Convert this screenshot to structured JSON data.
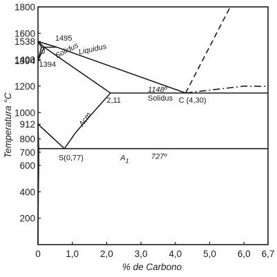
{
  "chart_data": {
    "type": "line",
    "title": "",
    "xlabel": "% de Carbono",
    "ylabel": "Temperatura °C",
    "xlim": [
      0,
      6.7
    ],
    "ylim": [
      0,
      1800
    ],
    "x_ticks": [
      {
        "v": 0,
        "label": "0"
      },
      {
        "v": 1.0,
        "label": "1,0"
      },
      {
        "v": 2.0,
        "label": "2,0"
      },
      {
        "v": 3.0,
        "label": "3,0"
      },
      {
        "v": 4.0,
        "label": "4,0"
      },
      {
        "v": 5.0,
        "label": "5,0"
      },
      {
        "v": 6.0,
        "label": "6,0"
      },
      {
        "v": 6.7,
        "label": "6,7"
      }
    ],
    "y_ticks": [
      {
        "v": 200,
        "label": "200"
      },
      {
        "v": 400,
        "label": "400"
      },
      {
        "v": 600,
        "label": "600"
      },
      {
        "v": 700,
        "label": "700"
      },
      {
        "v": 800,
        "label": "800"
      },
      {
        "v": 912,
        "label": "912"
      },
      {
        "v": 1000,
        "label": "1000"
      },
      {
        "v": 1200,
        "label": "1200"
      },
      {
        "v": 1394,
        "label": "1394"
      },
      {
        "v": 1400,
        "label": "1400"
      },
      {
        "v": 1538,
        "label": "1538"
      },
      {
        "v": 1600,
        "label": "1600"
      },
      {
        "v": 1800,
        "label": "1800"
      }
    ],
    "series": [
      {
        "key": "liquidus",
        "style": "solid",
        "points": [
          [
            0,
            1538
          ],
          [
            0.55,
            1495
          ],
          [
            4.3,
            1148
          ]
        ]
      },
      {
        "key": "peritectic",
        "style": "solid",
        "points": [
          [
            0,
            1538
          ],
          [
            0.18,
            1495
          ],
          [
            0.55,
            1495
          ]
        ]
      },
      {
        "key": "delta-solidus",
        "style": "solid",
        "points": [
          [
            0,
            1538
          ],
          [
            0.1,
            1495
          ],
          [
            0.18,
            1495
          ]
        ]
      },
      {
        "key": "delta-gamma",
        "style": "solid",
        "points": [
          [
            0,
            1394
          ],
          [
            0.1,
            1495
          ]
        ]
      },
      {
        "key": "gamma-boundary",
        "style": "solid",
        "points": [
          [
            0,
            1394
          ],
          [
            0.18,
            1495
          ]
        ]
      },
      {
        "key": "solidus",
        "style": "solid",
        "points": [
          [
            0.18,
            1495
          ],
          [
            2.11,
            1148
          ]
        ]
      },
      {
        "key": "eutectic",
        "style": "solid",
        "points": [
          [
            2.11,
            1148
          ],
          [
            6.7,
            1148
          ]
        ]
      },
      {
        "key": "acm",
        "style": "solid",
        "points": [
          [
            0.77,
            727
          ],
          [
            1.1,
            850
          ],
          [
            1.5,
            970
          ],
          [
            2.11,
            1148
          ]
        ]
      },
      {
        "key": "a3",
        "style": "solid",
        "points": [
          [
            0,
            912
          ],
          [
            0.3,
            840
          ],
          [
            0.77,
            727
          ]
        ]
      },
      {
        "key": "a1",
        "style": "solid",
        "points": [
          [
            0.02,
            727
          ],
          [
            6.7,
            727
          ]
        ]
      },
      {
        "key": "alpha-solvus",
        "style": "solid",
        "points": [
          [
            0.02,
            727
          ],
          [
            0.02,
            600
          ],
          [
            0.01,
            400
          ],
          [
            0.005,
            200
          ],
          [
            0,
            0
          ]
        ]
      },
      {
        "key": "alpha-gamma",
        "style": "solid",
        "points": [
          [
            0,
            912
          ],
          [
            0.02,
            727
          ]
        ]
      },
      {
        "key": "graphite-liquidus",
        "style": "dashed",
        "points": [
          [
            4.3,
            1148
          ],
          [
            5.6,
            1800
          ]
        ]
      },
      {
        "key": "graphite-eutectic",
        "style": "dashdot",
        "points": [
          [
            4.3,
            1148
          ],
          [
            5.0,
            1170
          ],
          [
            6.0,
            1200
          ],
          [
            6.7,
            1198
          ]
        ]
      }
    ],
    "annotations": [
      {
        "text": "1495",
        "x": 0.5,
        "y": 1545,
        "style": "normal"
      },
      {
        "text": "J",
        "x": 0.1,
        "y": 1445,
        "style": "normal"
      },
      {
        "text": "1394",
        "x": 0.03,
        "y": 1345,
        "style": "normal"
      },
      {
        "text": "Liquidus",
        "x": 1.2,
        "y": 1440,
        "style": "rotated",
        "angle": -12
      },
      {
        "text": "Solidus",
        "x": 0.55,
        "y": 1410,
        "style": "rotated",
        "angle": -28
      },
      {
        "text": "1148º",
        "x": 3.2,
        "y": 1155,
        "style": "italic"
      },
      {
        "text": "Solidus",
        "x": 3.2,
        "y": 1090,
        "style": "normal"
      },
      {
        "text": "C (4,30)",
        "x": 4.1,
        "y": 1075,
        "style": "normal"
      },
      {
        "text": "2,11",
        "x": 2.0,
        "y": 1075,
        "style": "normal"
      },
      {
        "text": "Acm",
        "x": 1.3,
        "y": 890,
        "style": "rotated",
        "angle": -55
      },
      {
        "text": "S(0,77)",
        "x": 0.6,
        "y": 640,
        "style": "normal"
      },
      {
        "text": "A",
        "x": 2.4,
        "y": 640,
        "style": "italic",
        "sub": "1"
      },
      {
        "text": "727º",
        "x": 3.3,
        "y": 650,
        "style": "italic"
      }
    ],
    "grid": false,
    "legend": "none"
  }
}
